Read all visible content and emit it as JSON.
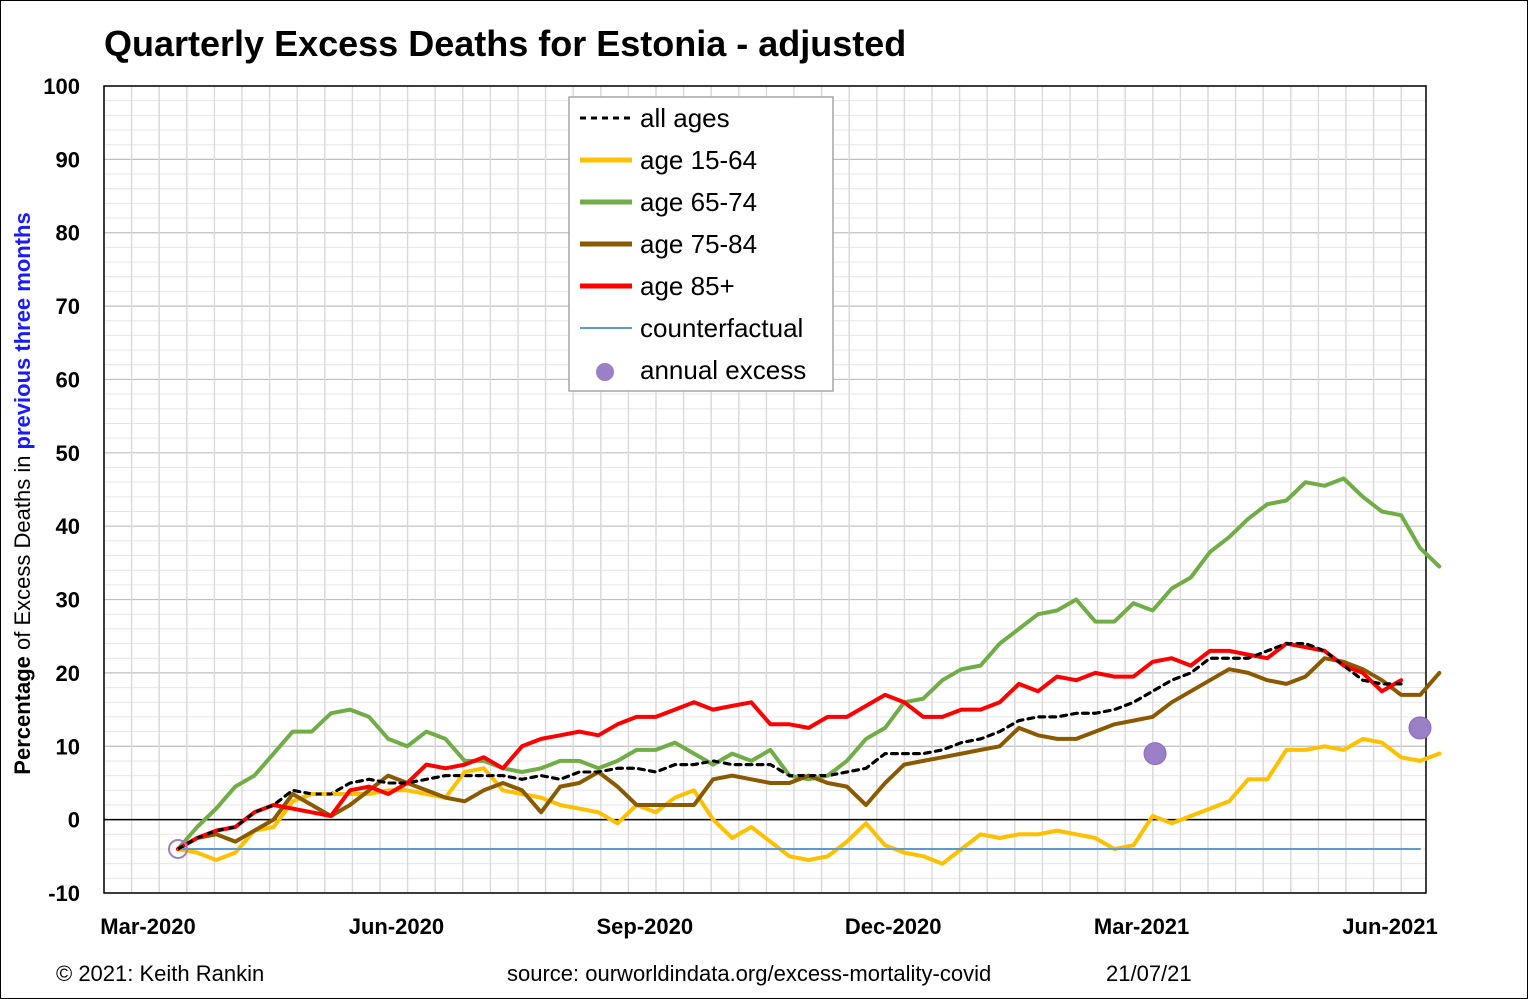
{
  "chart_data": {
    "type": "line",
    "title": "Quarterly Excess Deaths for Estonia - adjusted",
    "ylabel_parts": [
      {
        "text": "Percentage",
        "color": "#000000",
        "bold": true
      },
      {
        "text": " of Excess Deaths in ",
        "color": "#000000",
        "bold": false
      },
      {
        "text": "previous three months",
        "color": "#1a1aff",
        "bold": true
      }
    ],
    "ylim": [
      -10,
      100
    ],
    "yticks": [
      -10,
      0,
      10,
      20,
      30,
      40,
      50,
      60,
      70,
      80,
      90,
      100
    ],
    "xlim": [
      0,
      16
    ],
    "xtick_labels": [
      {
        "label": "Mar-2020",
        "x": 0
      },
      {
        "label": "Jun-2020",
        "x": 3
      },
      {
        "label": "Sep-2020",
        "x": 6
      },
      {
        "label": "Dec-2020",
        "x": 9
      },
      {
        "label": "Mar-2021",
        "x": 12
      },
      {
        "label": "Jun-2021",
        "x": 15
      }
    ],
    "grid": true,
    "legend_position": "top-center",
    "x_step_weeks": 0.2308,
    "series": [
      {
        "name": "all ages",
        "color": "#000000",
        "dash": true,
        "values": [
          -4,
          -2.5,
          -1.5,
          -1,
          1,
          2,
          4,
          3.5,
          3.5,
          5,
          5.5,
          5,
          5,
          5.5,
          6,
          6,
          6,
          6,
          5.5,
          6,
          5.5,
          6.5,
          6.5,
          7,
          7,
          6.5,
          7.5,
          7.5,
          8,
          7.5,
          7.5,
          7.5,
          6,
          6,
          6,
          6.5,
          7,
          9,
          9,
          9,
          9.5,
          10.5,
          11,
          12,
          13.5,
          14,
          14,
          14.5,
          14.5,
          15,
          16,
          17.5,
          19,
          20,
          22,
          22,
          22,
          23,
          24,
          24,
          23,
          21,
          19,
          18.5,
          18.5
        ]
      },
      {
        "name": "age 15-64",
        "color": "#ffc000",
        "dash": false,
        "values": [
          -4,
          -4.5,
          -5.5,
          -4.5,
          -1.5,
          -1,
          2.5,
          3.5,
          3.5,
          3.5,
          3.5,
          4,
          4,
          3.5,
          3,
          6.5,
          7,
          4,
          3.5,
          3,
          2,
          1.5,
          1,
          -0.5,
          2,
          1,
          3,
          4,
          0,
          -2.5,
          -1,
          -3,
          -5,
          -5.5,
          -5,
          -3,
          -0.5,
          -3.5,
          -4.5,
          -5,
          -6,
          -4,
          -2,
          -2.5,
          -2,
          -2,
          -1.5,
          -2,
          -2.5,
          -4,
          -3.5,
          0.5,
          -0.5,
          0.5,
          1.5,
          2.5,
          5.5,
          5.5,
          9.5,
          9.5,
          10,
          9.5,
          11,
          10.5,
          8.5,
          8,
          9
        ]
      },
      {
        "name": "age 65-74",
        "color": "#70ad47",
        "dash": false,
        "values": [
          -4,
          -1,
          1.5,
          4.5,
          6,
          9,
          12,
          12,
          14.5,
          15,
          14,
          11,
          10,
          12,
          11,
          8,
          8,
          7,
          6.5,
          7,
          8,
          8,
          7,
          8,
          9.5,
          9.5,
          10.5,
          9,
          7.5,
          9,
          8,
          9.5,
          6,
          5.5,
          6,
          8,
          11,
          12.5,
          16,
          16.5,
          19,
          20.5,
          21,
          24,
          26,
          28,
          28.5,
          30,
          27,
          27,
          29.5,
          28.5,
          31.5,
          33,
          36.5,
          38.5,
          41,
          43,
          43.5,
          46,
          45.5,
          46.5,
          44,
          42,
          41.5,
          37,
          34.5
        ]
      },
      {
        "name": "age 75-84",
        "color": "#8b5a00",
        "dash": false,
        "values": [
          -4,
          -2.5,
          -2,
          -3,
          -1.5,
          0,
          3.5,
          2,
          0.5,
          2,
          4,
          6,
          5,
          4,
          3,
          2.5,
          4,
          5,
          4,
          1,
          4.5,
          5,
          6.5,
          4.5,
          2,
          2,
          2,
          2,
          5.5,
          6,
          5.5,
          5,
          5,
          6,
          5,
          4.5,
          2,
          5,
          7.5,
          8,
          8.5,
          9,
          9.5,
          10,
          12.5,
          11.5,
          11,
          11,
          12,
          13,
          13.5,
          14,
          16,
          17.5,
          19,
          20.5,
          20,
          19,
          18.5,
          19.5,
          22,
          21.5,
          20.5,
          19,
          17,
          17,
          20
        ]
      },
      {
        "name": "age 85+",
        "color": "#ff0000",
        "dash": false,
        "values": [
          -4,
          -2.5,
          -1.5,
          -1,
          1,
          2,
          1.5,
          1,
          0.5,
          4,
          4.5,
          3.5,
          5,
          7.5,
          7,
          7.5,
          8.5,
          7,
          10,
          11,
          11.5,
          12,
          11.5,
          13,
          14,
          14,
          15,
          16,
          15,
          15.5,
          16,
          13,
          13,
          12.5,
          14,
          14,
          15.5,
          17,
          16,
          14,
          14,
          15,
          15,
          16,
          18.5,
          17.5,
          19.5,
          19,
          20,
          19.5,
          19.5,
          21.5,
          22,
          21,
          23,
          23,
          22.5,
          22,
          24,
          23.5,
          23,
          21,
          20,
          17.5,
          19
        ]
      },
      {
        "name": "counterfactual",
        "color": "#5b9bd5",
        "dash": false,
        "thin": true,
        "values": [
          -4,
          -4
        ]
      }
    ],
    "counterfactual_range": [
      0,
      15
    ],
    "annual_excess": {
      "name": "annual excess",
      "color": "#9b7fc7",
      "points": [
        {
          "x": 0,
          "y": -4,
          "hollow": true
        },
        {
          "x": 11.8,
          "y": 9
        },
        {
          "x": 15,
          "y": 12.5
        }
      ]
    }
  },
  "footer": {
    "copyright": "© 2021: Keith Rankin",
    "source": "source: ourworldindata.org/excess-mortality-covid",
    "date": "21/07/21"
  }
}
